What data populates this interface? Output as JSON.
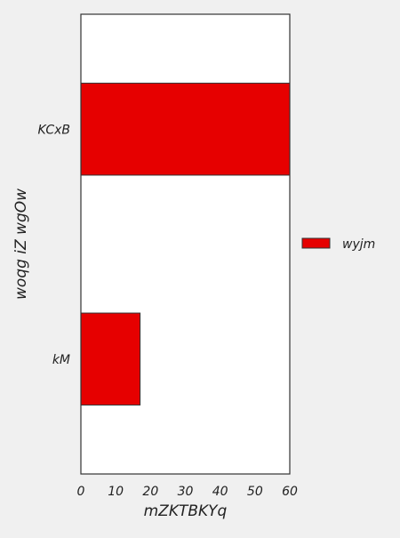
{
  "chart_data": {
    "type": "bar",
    "orientation": "horizontal",
    "categories": [
      "kM",
      "KCxB"
    ],
    "series": [
      {
        "name": "wyjm",
        "values": [
          17,
          60
        ]
      }
    ],
    "xlabel": "mZKTBKYq",
    "ylabel": "woqg iZ wgOw",
    "xlim": [
      0,
      60
    ],
    "xticks": [
      "0",
      "10",
      "20",
      "30",
      "40",
      "50",
      "60"
    ],
    "grid": false,
    "legend_position": "right",
    "colors": {
      "bar": "#e60000",
      "plot_background": "#ffffff",
      "figure_background": "#f0f0f0",
      "frame": "#333333"
    }
  }
}
